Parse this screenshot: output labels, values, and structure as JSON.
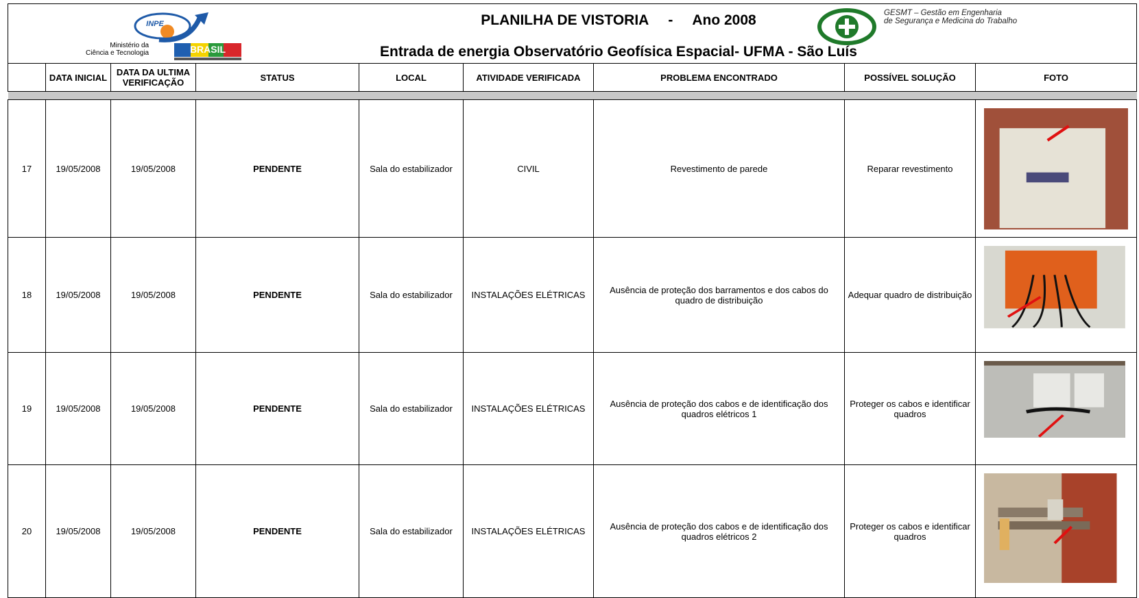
{
  "header": {
    "title": "PLANILHA DE VISTORIA",
    "title_separator": "-",
    "year": "Ano 2008",
    "subtitle": "Entrada de energia Observatório Geofísica Espacial- UFMA - São Luís",
    "inpe_logo": "INPE",
    "ministry": [
      "Ministério da",
      "Ciência e Tecnologia"
    ],
    "brasil_logo": "BRASIL",
    "gesmt": [
      "GESMT – Gestão em Engenharia",
      "de Segurança e Medicina do Trabalho"
    ]
  },
  "table": {
    "columns": [
      "DATA INICIAL",
      "DATA DA ULTIMA VERIFICAÇÃO",
      "STATUS",
      "LOCAL",
      "ATIVIDADE VERIFICADA",
      "PROBLEMA ENCONTRADO",
      "POSSÍVEL SOLUÇÃO",
      "FOTO"
    ],
    "rows": [
      [
        "17",
        "19/05/2008",
        "19/05/2008",
        "PENDENTE",
        "Sala do estabilizador",
        "CIVIL",
        "Revestimento de parede",
        "Reparar revestimento"
      ],
      [
        "18",
        "19/05/2008",
        "19/05/2008",
        "PENDENTE",
        "Sala do estabilizador",
        "INSTALAÇÕES ELÉTRICAS",
        "Ausência de proteção dos barramentos e  dos cabos do quadro de distribuição",
        "Adequar quadro de distribuição"
      ],
      [
        "19",
        "19/05/2008",
        "19/05/2008",
        "PENDENTE",
        "Sala do estabilizador",
        "INSTALAÇÕES ELÉTRICAS",
        "Ausência de proteção dos cabos e de identificação dos quadros elétricos 1",
        "Proteger os cabos e identificar quadros"
      ],
      [
        "20",
        "19/05/2008",
        "19/05/2008",
        "PENDENTE",
        "Sala do estabilizador",
        "INSTALAÇÕES ELÉTRICAS",
        "Ausência de proteção dos cabos e de identificação dos quadros elétricos 2",
        "Proteger os cabos e identificar quadros"
      ]
    ]
  }
}
